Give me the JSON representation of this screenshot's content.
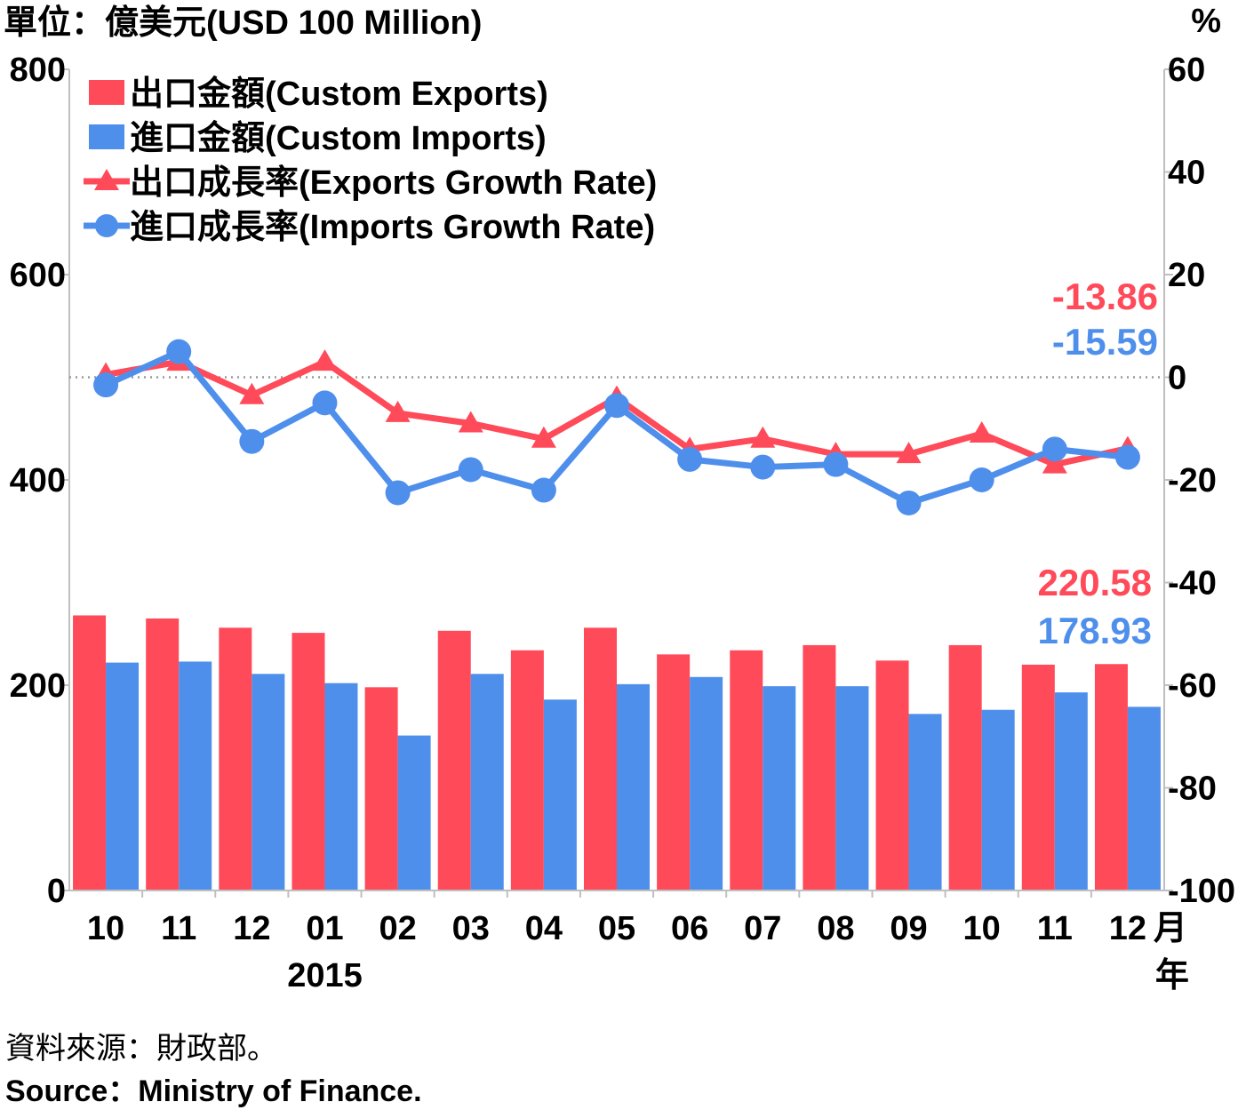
{
  "chart_data": {
    "type": "bar+line",
    "left_axis_label": "單位：億美元(USD 100 Million)",
    "right_axis_label": "%",
    "left_ylim": [
      0,
      800
    ],
    "left_ticks": [
      "0",
      "200",
      "400",
      "600",
      "800"
    ],
    "right_ylim": [
      -100,
      60
    ],
    "right_ticks": [
      "-100",
      "-80",
      "-60",
      "-40",
      "-20",
      "0",
      "20",
      "40",
      "60"
    ],
    "categories": [
      "10",
      "11",
      "12",
      "01",
      "02",
      "03",
      "04",
      "05",
      "06",
      "07",
      "08",
      "09",
      "10",
      "11",
      "12"
    ],
    "month_unit": "月",
    "year_label": "2015",
    "year_unit": "年",
    "year_start_index": 3,
    "colors": {
      "exports": "#ff4a5a",
      "imports": "#4f8fec"
    },
    "series": [
      {
        "name": "出口金額(Custom Exports)",
        "kind": "bar",
        "axis": "left",
        "color": "#ff4a5a",
        "values": [
          268,
          265,
          256,
          251,
          198,
          253,
          234,
          256,
          230,
          234,
          239,
          224,
          239,
          220,
          220.58
        ]
      },
      {
        "name": "進口金額(Custom Imports)",
        "kind": "bar",
        "axis": "left",
        "color": "#4f8fec",
        "values": [
          222,
          223,
          211,
          202,
          151,
          211,
          186,
          201,
          208,
          199,
          199,
          172,
          176,
          193,
          178.93
        ]
      },
      {
        "name": "出口成長率(Exports Growth Rate)",
        "kind": "line",
        "marker": "triangle",
        "axis": "right",
        "color": "#ff4a5a",
        "values": [
          0.5,
          3,
          -3.5,
          3,
          -7,
          -9,
          -12,
          -4,
          -14,
          -12,
          -15,
          -15,
          -11,
          -17,
          -13.86
        ]
      },
      {
        "name": "進口成長率(Imports Growth Rate)",
        "kind": "line",
        "marker": "circle",
        "axis": "right",
        "color": "#4f8fec",
        "values": [
          -1.5,
          5,
          -12.5,
          -5,
          -22.5,
          -18,
          -22,
          -5.5,
          -16,
          -17.5,
          -17,
          -24.5,
          -20,
          -14,
          -15.59
        ]
      }
    ],
    "annotations": {
      "exports_growth_last": "-13.86",
      "imports_growth_last": "-15.59",
      "exports_last": "220.58",
      "imports_last": "178.93"
    },
    "reference_line": 0,
    "legend_position": "top-left"
  },
  "source": {
    "zh": "資料來源：財政部。",
    "en": "Source：Ministry of Finance."
  }
}
